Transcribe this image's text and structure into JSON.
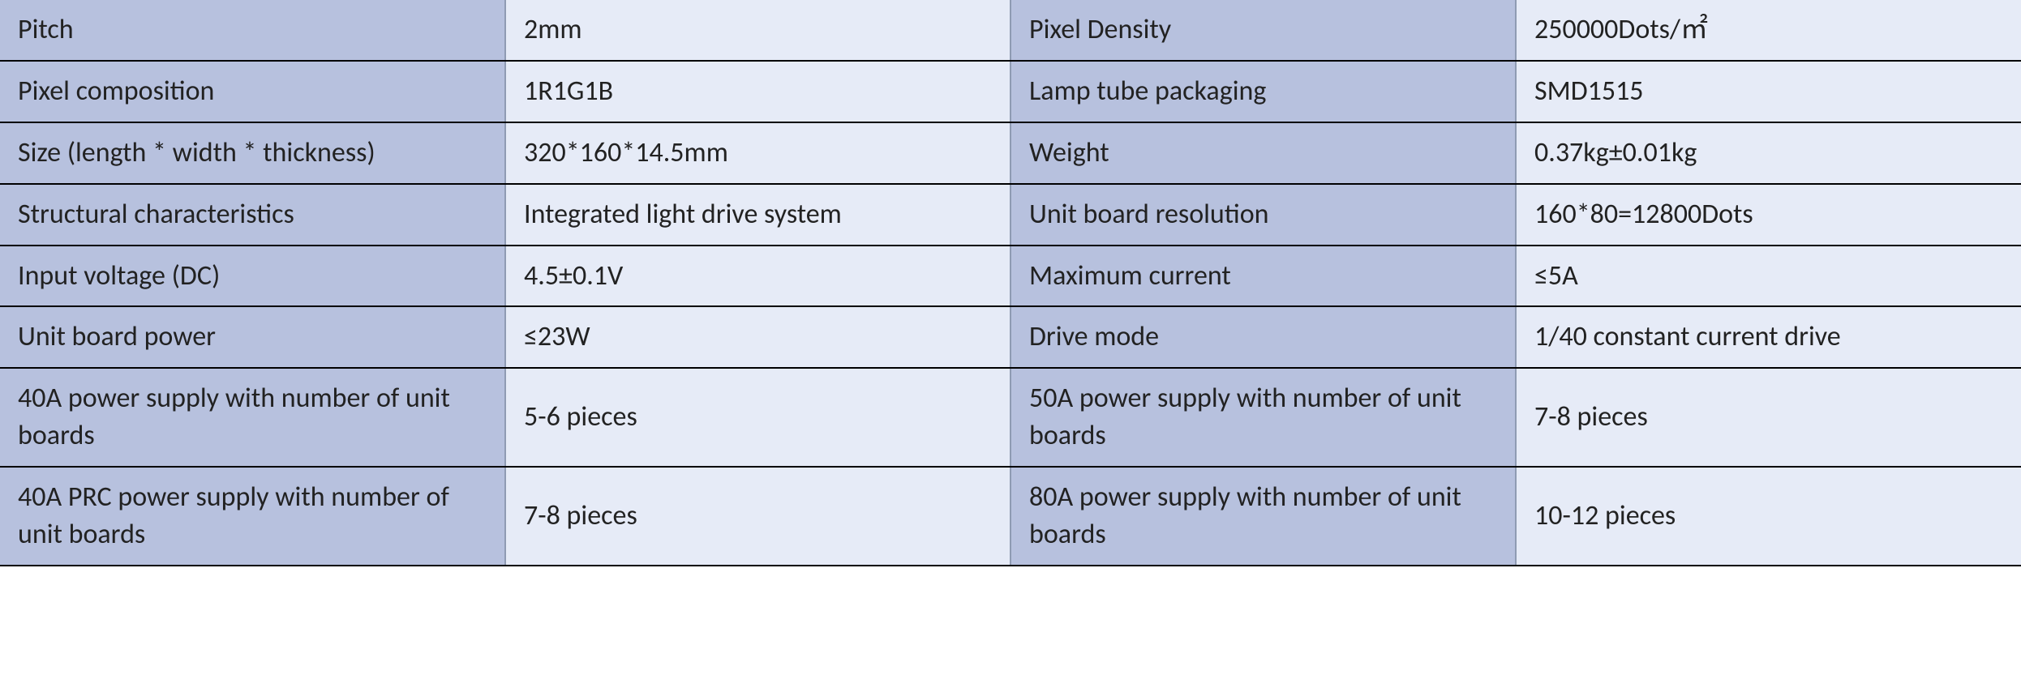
{
  "table": {
    "type": "table",
    "background_color": "#ffffff",
    "row_border_color": "#000000",
    "col_border_color": "#8f9bb3",
    "key_cell_bg": "#b7c1de",
    "value_cell_bg": "#e6ebf7",
    "text_color": "#222222",
    "font_family": "Calibri",
    "font_size_pt": 16,
    "column_widths_pct": [
      15,
      15,
      15,
      15
    ],
    "columns": [
      "param_a",
      "value_a",
      "param_b",
      "value_b"
    ],
    "rows": [
      {
        "k1": "Pitch",
        "v1": "2mm",
        "k2": "Pixel Density",
        "v2": "250000Dots/㎡"
      },
      {
        "k1": "Pixel composition",
        "v1": "1R1G1B",
        "k2": "Lamp tube packaging",
        "v2": "SMD1515"
      },
      {
        "k1": "Size (length * width * thickness)",
        "v1": "320*160*14.5mm",
        "k2": "Weight",
        "v2": "0.37kg±0.01kg"
      },
      {
        "k1": "Structural characteristics",
        "v1": "Integrated light drive system",
        "k2": "Unit board resolution",
        "v2": "160*80=12800Dots"
      },
      {
        "k1": "Input voltage (DC)",
        "v1": "4.5±0.1V",
        "k2": "Maximum current",
        "v2": "≤5A"
      },
      {
        "k1": "Unit board power",
        "v1": "≤23W",
        "k2": "Drive mode",
        "v2": "1/40 constant current drive"
      },
      {
        "k1": "40A power supply with number of unit boards",
        "v1": "5-6 pieces",
        "k2": "50A power supply with number of unit boards",
        "v2": "7-8 pieces"
      },
      {
        "k1": "40A PRC power supply with number of unit boards",
        "v1": "7-8 pieces",
        "k2": "80A power supply with number of unit boards",
        "v2": "10-12 pieces"
      }
    ]
  }
}
